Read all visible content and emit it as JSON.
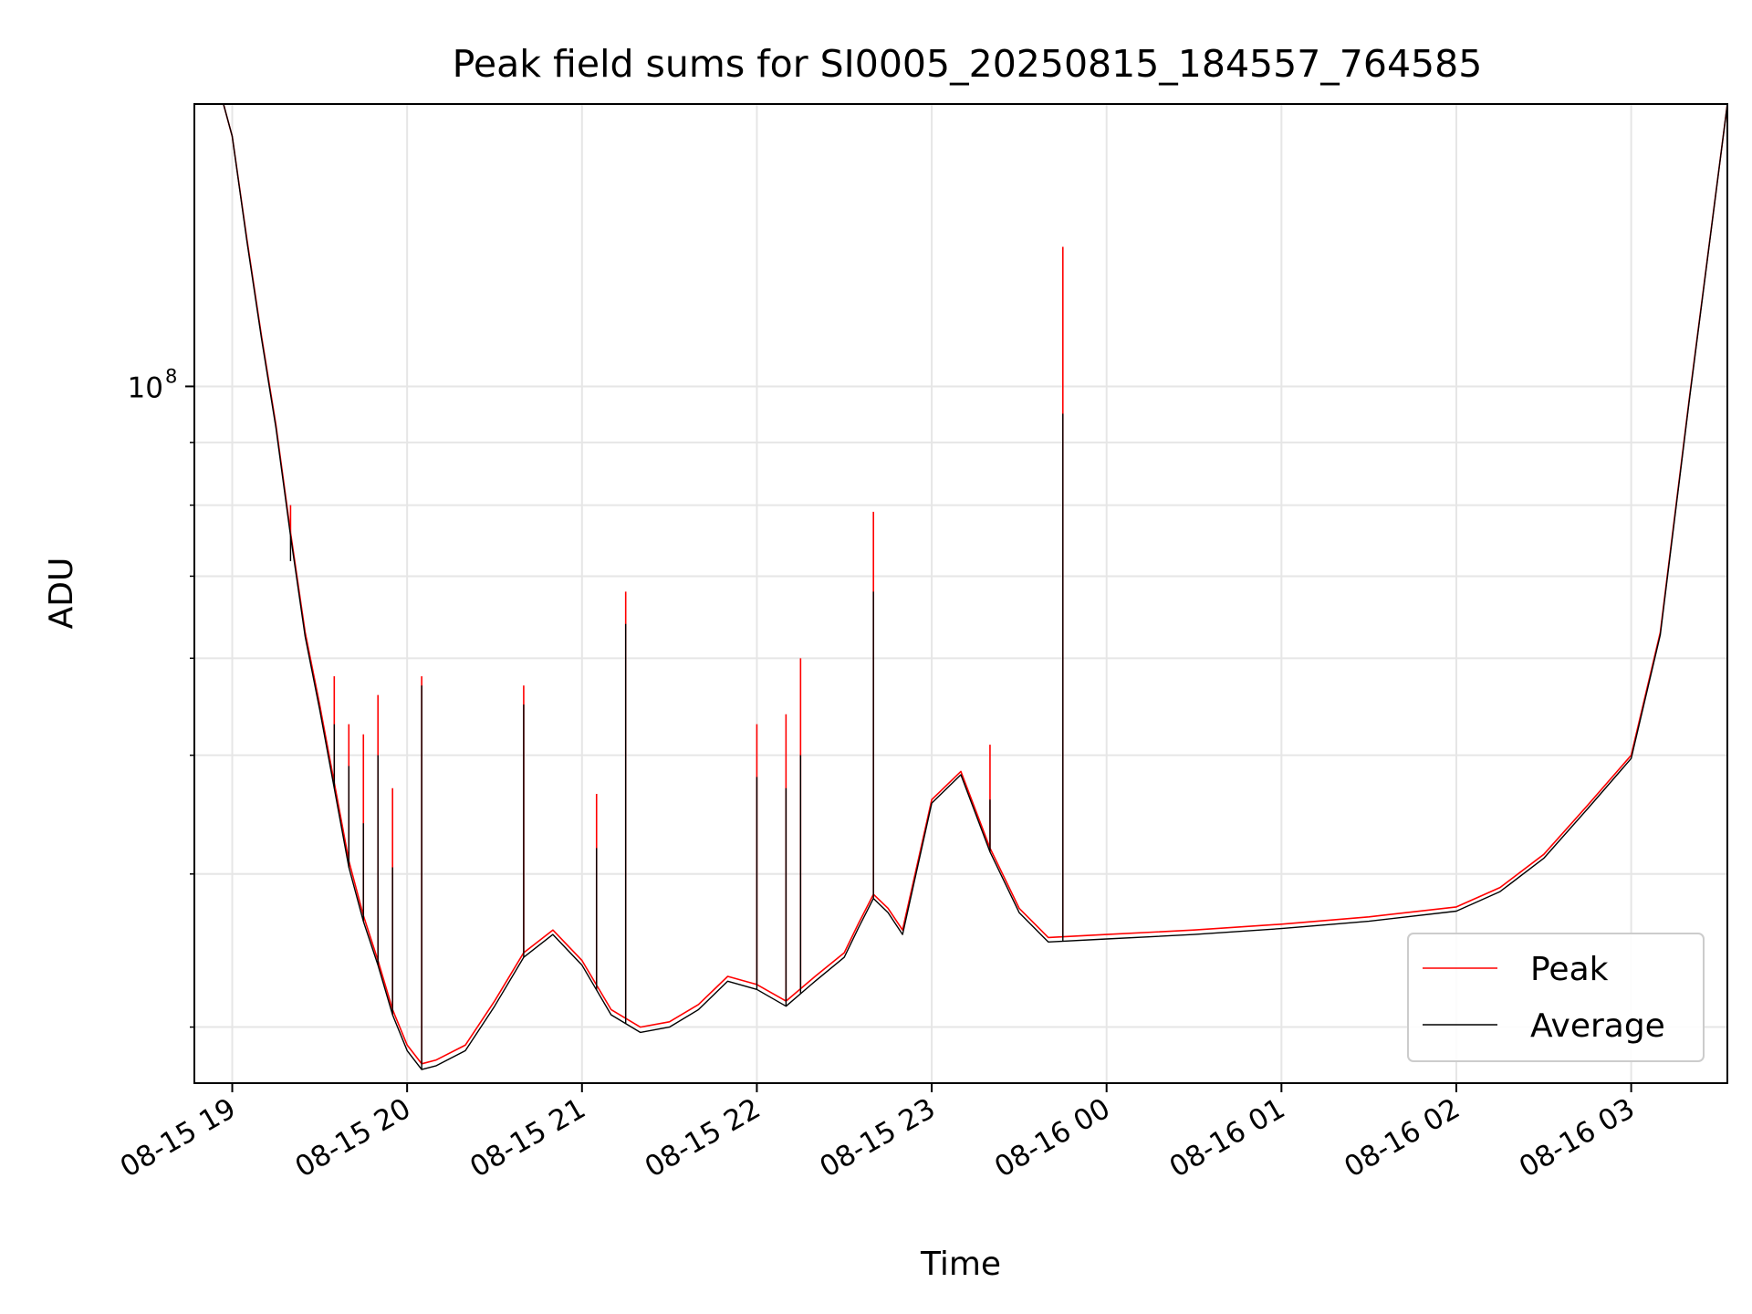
{
  "chart_data": {
    "type": "line",
    "title": "Peak field sums for SI0005_20250815_184557_764585",
    "xlabel": "Time",
    "ylabel": "ADU",
    "yscale": "log",
    "grid": true,
    "legend_position": "lower right",
    "xlim": [
      "2025-08-15 18:47",
      "2025-08-16 03:33"
    ],
    "ylim": [
      27000000,
      170000000
    ],
    "x_ticks": [
      "08-15 19",
      "08-15 20",
      "08-15 21",
      "08-15 22",
      "08-15 23",
      "08-16 00",
      "08-16 01",
      "08-16 02",
      "08-16 03"
    ],
    "y_major_tick_label": "10",
    "y_major_tick_exponent": "8",
    "y_major_tick_value": 100000000,
    "x": [
      "2025-08-15 18:47",
      "2025-08-15 18:57",
      "2025-08-15 19:00",
      "2025-08-15 19:05",
      "2025-08-15 19:10",
      "2025-08-15 19:15",
      "2025-08-15 19:20",
      "2025-08-15 19:25",
      "2025-08-15 19:30",
      "2025-08-15 19:35",
      "2025-08-15 19:40",
      "2025-08-15 19:45",
      "2025-08-15 19:50",
      "2025-08-15 19:55",
      "2025-08-15 20:00",
      "2025-08-15 20:05",
      "2025-08-15 20:10",
      "2025-08-15 20:20",
      "2025-08-15 20:30",
      "2025-08-15 20:40",
      "2025-08-15 20:50",
      "2025-08-15 21:00",
      "2025-08-15 21:10",
      "2025-08-15 21:20",
      "2025-08-15 21:30",
      "2025-08-15 21:40",
      "2025-08-15 21:50",
      "2025-08-15 22:00",
      "2025-08-15 22:10",
      "2025-08-15 22:20",
      "2025-08-15 22:30",
      "2025-08-15 22:35",
      "2025-08-15 22:40",
      "2025-08-15 22:45",
      "2025-08-15 22:50",
      "2025-08-15 23:00",
      "2025-08-15 23:10",
      "2025-08-15 23:20",
      "2025-08-15 23:30",
      "2025-08-15 23:40",
      "2025-08-16 00:00",
      "2025-08-16 00:30",
      "2025-08-16 01:00",
      "2025-08-16 01:30",
      "2025-08-16 02:00",
      "2025-08-16 02:15",
      "2025-08-16 02:30",
      "2025-08-16 02:45",
      "2025-08-16 03:00",
      "2025-08-16 03:10",
      "2025-08-16 03:20",
      "2025-08-16 03:33"
    ],
    "series": [
      {
        "name": "Peak",
        "color": "#ff0000",
        "values": [
          170000000,
          170000000,
          160000000,
          132000000,
          110000000,
          93000000,
          76000000,
          63000000,
          55000000,
          47500000,
          41000000,
          37000000,
          34000000,
          31000000,
          29000000,
          28000000,
          28200000,
          29000000,
          31500000,
          34500000,
          36000000,
          34000000,
          31000000,
          30000000,
          30300000,
          31300000,
          33000000,
          32500000,
          31500000,
          33000000,
          34500000,
          36500000,
          38500000,
          37500000,
          36000000,
          46000000,
          48500000,
          42000000,
          37500000,
          35500000,
          35700000,
          36000000,
          36400000,
          36900000,
          37600000,
          39000000,
          41500000,
          45500000,
          50000000,
          63000000,
          98000000,
          170000000
        ]
      },
      {
        "name": "Average",
        "color": "#000000",
        "values": [
          170000000,
          170000000,
          160000000,
          131500000,
          109500000,
          92500000,
          75500000,
          62500000,
          54500000,
          47000000,
          40500000,
          36600000,
          33700000,
          30700000,
          28700000,
          27700000,
          27900000,
          28700000,
          31200000,
          34200000,
          35700000,
          33700000,
          30700000,
          29700000,
          30000000,
          31000000,
          32700000,
          32200000,
          31200000,
          32700000,
          34200000,
          36200000,
          38200000,
          37200000,
          35700000,
          45700000,
          48200000,
          41700000,
          37200000,
          35200000,
          35400000,
          35700000,
          36100000,
          36600000,
          37300000,
          38700000,
          41200000,
          45200000,
          49700000,
          62700000,
          97700000,
          170000000
        ]
      }
    ],
    "spikes": [
      {
        "time": "2025-08-15 19:20",
        "peak": 80000000,
        "average": 72000000
      },
      {
        "time": "2025-08-15 19:35",
        "peak": 58000000,
        "average": 53000000
      },
      {
        "time": "2025-08-15 19:40",
        "peak": 53000000,
        "average": 49000000
      },
      {
        "time": "2025-08-15 19:45",
        "peak": 52000000,
        "average": 44000000
      },
      {
        "time": "2025-08-15 19:50",
        "peak": 56000000,
        "average": 50000000
      },
      {
        "time": "2025-08-15 19:55",
        "peak": 47000000,
        "average": 40500000
      },
      {
        "time": "2025-08-15 20:05",
        "peak": 58000000,
        "average": 57000000
      },
      {
        "time": "2025-08-15 20:40",
        "peak": 57000000,
        "average": 55000000
      },
      {
        "time": "2025-08-15 21:05",
        "peak": 46500000,
        "average": 42000000
      },
      {
        "time": "2025-08-15 21:15",
        "peak": 68000000,
        "average": 64000000
      },
      {
        "time": "2025-08-15 22:00",
        "peak": 53000000,
        "average": 48000000
      },
      {
        "time": "2025-08-15 22:10",
        "peak": 54000000,
        "average": 47000000
      },
      {
        "time": "2025-08-15 22:15",
        "peak": 60000000,
        "average": 50000000
      },
      {
        "time": "2025-08-15 22:40",
        "peak": 79000000,
        "average": 68000000
      },
      {
        "time": "2025-08-15 23:20",
        "peak": 51000000,
        "average": 46000000
      },
      {
        "time": "2025-08-15 23:45",
        "peak": 130000000,
        "average": 95000000
      }
    ]
  }
}
